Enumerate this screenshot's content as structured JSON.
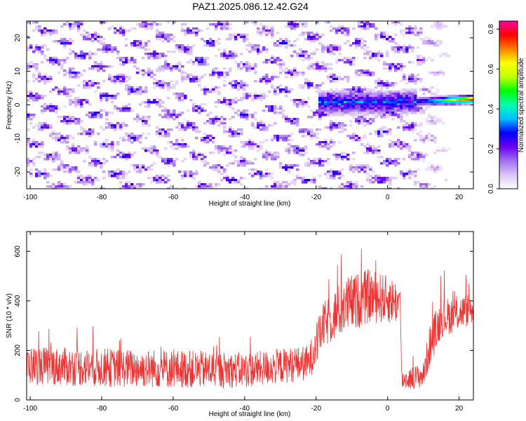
{
  "title": "PAZ1.2025.086.12.42.G24",
  "chart_data": [
    {
      "type": "heatmap",
      "xlabel": "Height of straight line (km)",
      "ylabel": "Frequency (Hz)",
      "xlim": [
        -101,
        24
      ],
      "ylim": [
        -25,
        25
      ],
      "x_ticks": [
        -100,
        -80,
        -60,
        -40,
        -20,
        0,
        20
      ],
      "y_ticks": [
        -20,
        -10,
        0,
        10,
        20
      ],
      "colorbar": {
        "label": "Normalized spectral amplitude",
        "range": [
          0,
          0.84
        ],
        "ticks": [
          0.0,
          0.2,
          0.4,
          0.6,
          0.8
        ],
        "colormap": [
          "#ffffff",
          "#dcc4f5",
          "#a070f0",
          "#6a00f0",
          "#0000ff",
          "#00bfff",
          "#00ffb0",
          "#00ff00",
          "#c0ff00",
          "#ffff00",
          "#ff8000",
          "#ff0000",
          "#ff00a0"
        ]
      },
      "ridge": {
        "x_range": [
          -20,
          24
        ],
        "frequency_hz": [
          0,
          2
        ],
        "peak_amplitude": 0.84
      },
      "grid": false
    },
    {
      "type": "line",
      "xlabel": "Height of straight line (km)",
      "ylabel": "SNR (10 * v/v)",
      "xlim": [
        -101,
        24
      ],
      "ylim": [
        0,
        680
      ],
      "x_ticks": [
        -100,
        -80,
        -60,
        -40,
        -20,
        0,
        20
      ],
      "y_ticks": [
        0,
        200,
        400,
        600
      ],
      "line_color": "#ee3333",
      "profile": {
        "x": [
          -101,
          -80,
          -60,
          -40,
          -22,
          -18,
          -12,
          -5,
          2,
          3.5,
          4,
          10,
          12,
          15,
          24
        ],
        "mean_snr": [
          140,
          130,
          125,
          120,
          150,
          300,
          380,
          420,
          400,
          380,
          80,
          100,
          230,
          330,
          370
        ],
        "noise_amplitude": [
          60,
          60,
          60,
          55,
          55,
          70,
          90,
          85,
          70,
          60,
          30,
          40,
          70,
          60,
          50
        ]
      },
      "grid": false
    }
  ]
}
